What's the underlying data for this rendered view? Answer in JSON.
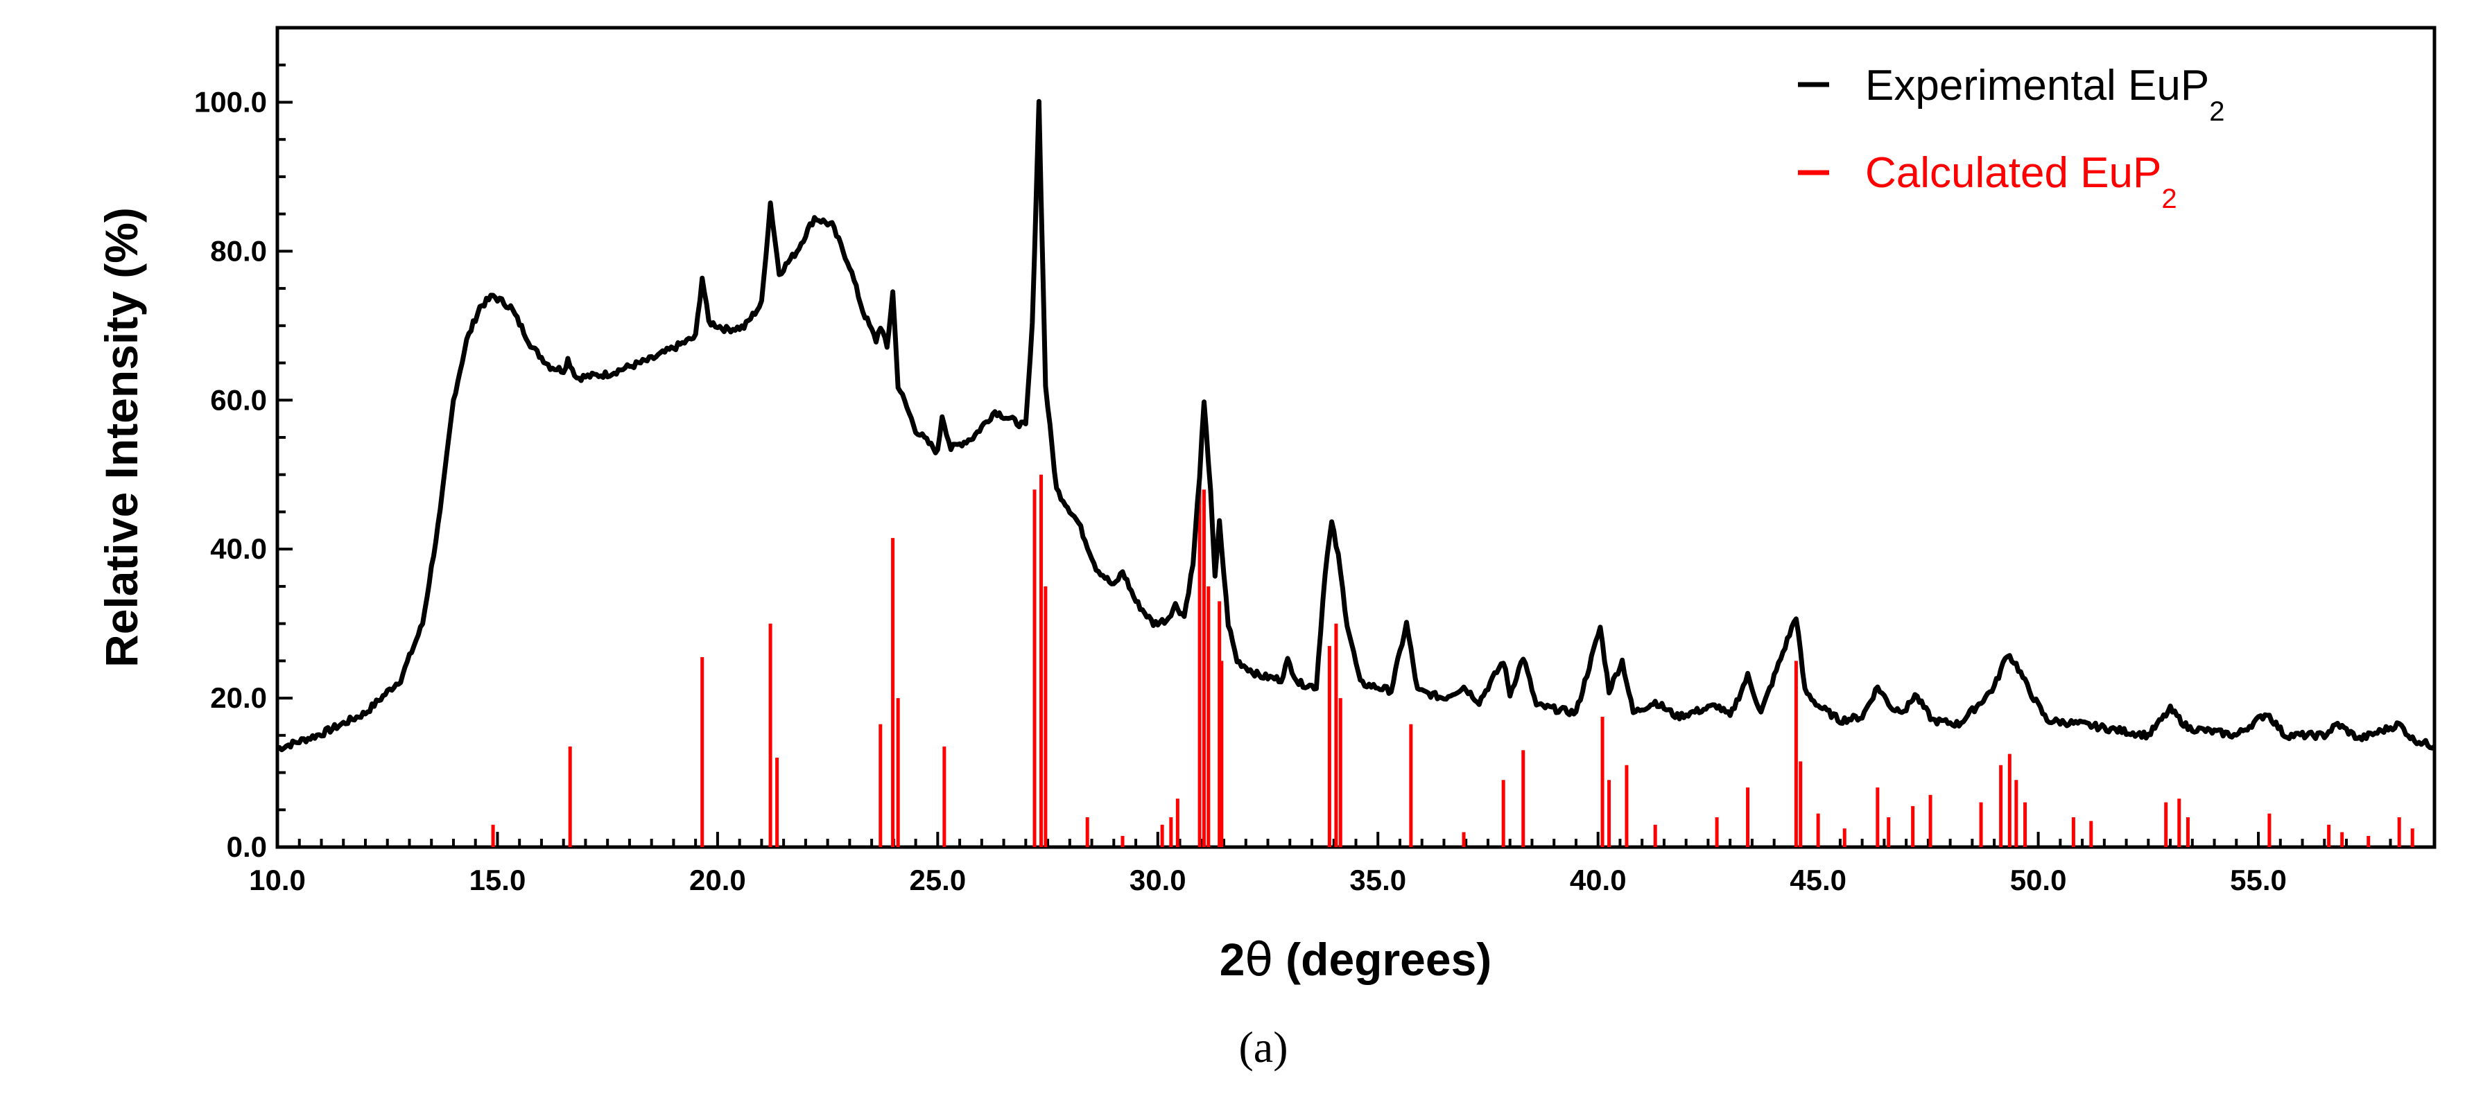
{
  "chart_data": {
    "type": "line",
    "xlabel_prefix": "2",
    "xlabel_symbol": "θ",
    "xlabel_suffix": " (degrees)",
    "ylabel": "Relative Intensity (%)",
    "xlim": [
      10.0,
      59.0
    ],
    "ylim": [
      0.0,
      110.0
    ],
    "x_ticks": [
      "10.0",
      "15.0",
      "20.0",
      "25.0",
      "30.0",
      "35.0",
      "40.0",
      "45.0",
      "50.0",
      "55.0"
    ],
    "x_tick_values": [
      10,
      15,
      20,
      25,
      30,
      35,
      40,
      45,
      50,
      55
    ],
    "y_ticks": [
      "0.0",
      "20.0",
      "40.0",
      "60.0",
      "80.0",
      "100.0"
    ],
    "y_tick_values": [
      0,
      20,
      40,
      60,
      80,
      100
    ],
    "grid": false,
    "legend_position": "top-right",
    "series": [
      {
        "name": "Experimental EuP",
        "name_subscript": "2",
        "color": "#000000",
        "style": "line",
        "points": [
          [
            10.0,
            13.2
          ],
          [
            11.0,
            15.2
          ],
          [
            12.0,
            18.0
          ],
          [
            12.8,
            22.5
          ],
          [
            13.3,
            30.0
          ],
          [
            13.7,
            45.0
          ],
          [
            14.0,
            60.0
          ],
          [
            14.3,
            68.0
          ],
          [
            14.6,
            72.5
          ],
          [
            14.9,
            74.0
          ],
          [
            15.3,
            72.5
          ],
          [
            15.8,
            67.0
          ],
          [
            16.2,
            64.5
          ],
          [
            16.5,
            64.0
          ],
          [
            16.6,
            65.5
          ],
          [
            16.8,
            63.0
          ],
          [
            17.5,
            63.5
          ],
          [
            18.5,
            65.5
          ],
          [
            19.0,
            67.0
          ],
          [
            19.5,
            68.5
          ],
          [
            19.65,
            76.5
          ],
          [
            19.8,
            70.5
          ],
          [
            20.2,
            69.5
          ],
          [
            20.6,
            69.8
          ],
          [
            21.0,
            73.0
          ],
          [
            21.2,
            86.5
          ],
          [
            21.4,
            77.0
          ],
          [
            21.8,
            80.0
          ],
          [
            22.2,
            84.5
          ],
          [
            22.6,
            83.5
          ],
          [
            23.0,
            78.0
          ],
          [
            23.3,
            72.0
          ],
          [
            23.6,
            68.0
          ],
          [
            23.7,
            70.0
          ],
          [
            23.85,
            67.0
          ],
          [
            23.98,
            74.5
          ],
          [
            24.1,
            62.0
          ],
          [
            24.5,
            56.0
          ],
          [
            25.0,
            53.0
          ],
          [
            25.1,
            58.0
          ],
          [
            25.3,
            53.5
          ],
          [
            25.8,
            55.0
          ],
          [
            26.3,
            58.5
          ],
          [
            26.8,
            57.0
          ],
          [
            27.0,
            56.5
          ],
          [
            27.15,
            70.0
          ],
          [
            27.3,
            100.0
          ],
          [
            27.45,
            62.0
          ],
          [
            27.7,
            48.0
          ],
          [
            28.2,
            43.5
          ],
          [
            28.6,
            37.5
          ],
          [
            29.0,
            35.0
          ],
          [
            29.2,
            37.0
          ],
          [
            29.5,
            33.0
          ],
          [
            29.9,
            30.0
          ],
          [
            30.2,
            30.5
          ],
          [
            30.4,
            32.5
          ],
          [
            30.6,
            31.0
          ],
          [
            30.8,
            38.0
          ],
          [
            30.95,
            50.0
          ],
          [
            31.05,
            59.5
          ],
          [
            31.2,
            48.0
          ],
          [
            31.3,
            36.0
          ],
          [
            31.4,
            43.5
          ],
          [
            31.6,
            30.0
          ],
          [
            31.8,
            25.0
          ],
          [
            32.3,
            23.0
          ],
          [
            32.8,
            22.5
          ],
          [
            32.95,
            25.0
          ],
          [
            33.2,
            22.0
          ],
          [
            33.6,
            21.5
          ],
          [
            33.8,
            37.0
          ],
          [
            33.95,
            43.5
          ],
          [
            34.1,
            39.0
          ],
          [
            34.3,
            30.0
          ],
          [
            34.6,
            22.0
          ],
          [
            35.3,
            21.0
          ],
          [
            35.65,
            30.0
          ],
          [
            35.9,
            21.0
          ],
          [
            36.5,
            20.0
          ],
          [
            36.95,
            21.5
          ],
          [
            37.3,
            19.5
          ],
          [
            37.85,
            25.0
          ],
          [
            38.0,
            20.5
          ],
          [
            38.3,
            25.5
          ],
          [
            38.6,
            19.0
          ],
          [
            39.5,
            18.0
          ],
          [
            40.05,
            29.5
          ],
          [
            40.25,
            21.0
          ],
          [
            40.55,
            25.0
          ],
          [
            40.8,
            18.0
          ],
          [
            41.3,
            19.5
          ],
          [
            41.8,
            17.5
          ],
          [
            42.7,
            19.0
          ],
          [
            43.0,
            17.5
          ],
          [
            43.4,
            23.0
          ],
          [
            43.7,
            18.0
          ],
          [
            44.5,
            31.0
          ],
          [
            44.7,
            21.0
          ],
          [
            45.0,
            19.0
          ],
          [
            45.5,
            17.0
          ],
          [
            46.0,
            17.5
          ],
          [
            46.35,
            21.5
          ],
          [
            46.7,
            18.5
          ],
          [
            47.0,
            18.5
          ],
          [
            47.2,
            20.5
          ],
          [
            47.6,
            17.0
          ],
          [
            48.2,
            16.5
          ],
          [
            48.7,
            19.5
          ],
          [
            49.0,
            21.5
          ],
          [
            49.3,
            26.0
          ],
          [
            49.5,
            24.5
          ],
          [
            49.8,
            21.0
          ],
          [
            50.2,
            17.0
          ],
          [
            51.0,
            16.5
          ],
          [
            51.5,
            16.0
          ],
          [
            52.5,
            15.0
          ],
          [
            53.0,
            18.5
          ],
          [
            53.4,
            16.0
          ],
          [
            54.5,
            15.0
          ],
          [
            55.2,
            18.0
          ],
          [
            55.6,
            15.0
          ],
          [
            56.5,
            15.0
          ],
          [
            56.8,
            16.5
          ],
          [
            57.3,
            14.5
          ],
          [
            58.2,
            16.5
          ],
          [
            58.5,
            14.5
          ],
          [
            59.0,
            13.5
          ]
        ]
      },
      {
        "name": "Calculated EuP",
        "name_subscript": "2",
        "color": "#ff0000",
        "style": "stick",
        "peaks": [
          [
            14.9,
            3.0
          ],
          [
            16.65,
            13.5
          ],
          [
            19.65,
            25.5
          ],
          [
            21.2,
            30.0
          ],
          [
            21.35,
            12.0
          ],
          [
            23.7,
            16.5
          ],
          [
            23.98,
            41.5
          ],
          [
            24.1,
            20.0
          ],
          [
            25.15,
            13.5
          ],
          [
            27.2,
            48.0
          ],
          [
            27.35,
            50.0
          ],
          [
            27.45,
            35.0
          ],
          [
            28.4,
            4.0
          ],
          [
            29.2,
            1.5
          ],
          [
            30.1,
            3.0
          ],
          [
            30.3,
            4.0
          ],
          [
            30.45,
            6.5
          ],
          [
            30.95,
            50.0
          ],
          [
            31.05,
            48.0
          ],
          [
            31.15,
            35.0
          ],
          [
            31.4,
            33.0
          ],
          [
            31.45,
            25.0
          ],
          [
            33.9,
            27.0
          ],
          [
            34.05,
            30.0
          ],
          [
            34.15,
            20.0
          ],
          [
            35.75,
            16.5
          ],
          [
            36.95,
            2.0
          ],
          [
            37.85,
            9.0
          ],
          [
            38.3,
            13.0
          ],
          [
            40.1,
            17.5
          ],
          [
            40.25,
            9.0
          ],
          [
            40.65,
            11.0
          ],
          [
            41.3,
            3.0
          ],
          [
            42.7,
            4.0
          ],
          [
            43.4,
            8.0
          ],
          [
            44.5,
            25.0
          ],
          [
            44.6,
            11.5
          ],
          [
            45.0,
            4.5
          ],
          [
            45.6,
            2.5
          ],
          [
            46.35,
            8.0
          ],
          [
            46.6,
            4.0
          ],
          [
            47.15,
            5.5
          ],
          [
            47.55,
            7.0
          ],
          [
            48.7,
            6.0
          ],
          [
            49.15,
            11.0
          ],
          [
            49.35,
            12.5
          ],
          [
            49.5,
            9.0
          ],
          [
            49.7,
            6.0
          ],
          [
            50.8,
            4.0
          ],
          [
            51.2,
            3.5
          ],
          [
            52.9,
            6.0
          ],
          [
            53.2,
            6.5
          ],
          [
            53.4,
            4.0
          ],
          [
            55.25,
            4.5
          ],
          [
            56.6,
            3.0
          ],
          [
            56.9,
            2.0
          ],
          [
            57.5,
            1.5
          ],
          [
            58.2,
            4.0
          ],
          [
            58.5,
            2.5
          ]
        ]
      }
    ]
  },
  "caption": "(a)"
}
